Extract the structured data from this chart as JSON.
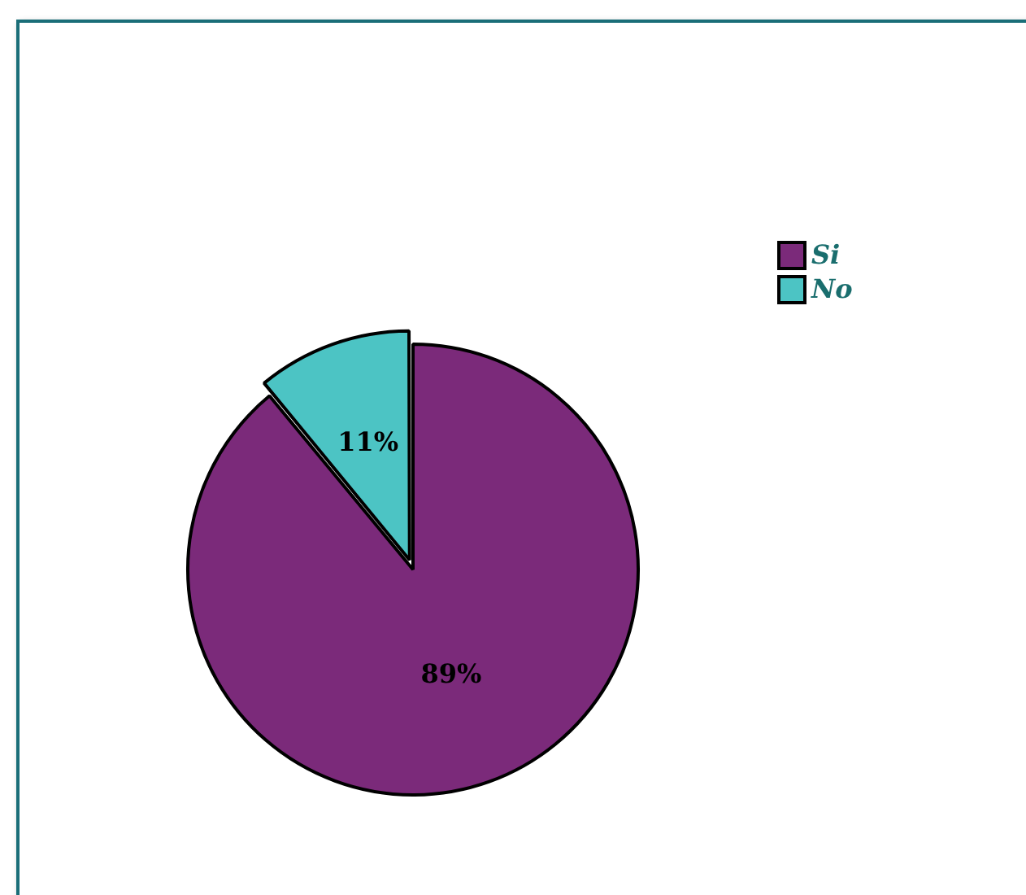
{
  "chart_data": {
    "type": "pie",
    "categories": [
      "Si",
      "No"
    ],
    "values": [
      89,
      11
    ],
    "colors": [
      "#7b2a7a",
      "#4cc4c4"
    ],
    "value_labels": [
      "89%",
      "11%"
    ],
    "legend": "top right"
  }
}
